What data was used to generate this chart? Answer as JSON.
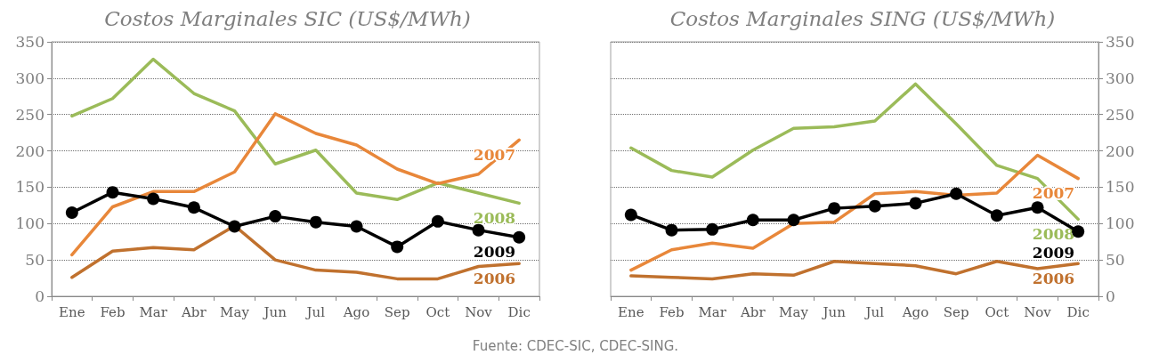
{
  "chart_data": [
    {
      "type": "line",
      "title": "Costos Marginales SIC (US$/MWh)",
      "categories": [
        "Ene",
        "Feb",
        "Mar",
        "Abr",
        "May",
        "Jun",
        "Jul",
        "Ago",
        "Sep",
        "Oct",
        "Nov",
        "Dic"
      ],
      "series": [
        {
          "name": "2008",
          "color": "#9bbb59",
          "marker": "none",
          "values": [
            248,
            272,
            326,
            279,
            255,
            182,
            201,
            142,
            133,
            156,
            142,
            128
          ]
        },
        {
          "name": "2007",
          "color": "#e8873a",
          "marker": "none",
          "values": [
            57,
            123,
            144,
            144,
            171,
            251,
            224,
            208,
            175,
            155,
            168,
            215
          ]
        },
        {
          "name": "2006",
          "color": "#c0712e",
          "marker": "none",
          "values": [
            26,
            62,
            67,
            64,
            97,
            50,
            36,
            33,
            24,
            24,
            41,
            45
          ]
        },
        {
          "name": "2009",
          "color": "#000000",
          "marker": "circle",
          "values": [
            115,
            143,
            134,
            122,
            96,
            110,
            102,
            96,
            68,
            103,
            91,
            81
          ]
        }
      ],
      "ylim": [
        0,
        350
      ],
      "yticks": [
        0,
        50,
        100,
        150,
        200,
        250,
        300,
        350
      ],
      "grid": "y",
      "legend": false,
      "annotations": [
        "Fuente: CDEC-SIC, CDEC-SING."
      ]
    },
    {
      "type": "line",
      "title": "Costos Marginales SING (US$/MWh)",
      "categories": [
        "Ene",
        "Feb",
        "Mar",
        "Abr",
        "May",
        "Jun",
        "Jul",
        "Ago",
        "Sep",
        "Oct",
        "Nov",
        "Dic"
      ],
      "series": [
        {
          "name": "2008",
          "color": "#9bbb59",
          "marker": "none",
          "axis": "y2",
          "values": [
            204,
            173,
            164,
            201,
            231,
            233,
            241,
            292,
            237,
            180,
            162,
            106
          ]
        },
        {
          "name": "2007",
          "color": "#e8873a",
          "marker": "none",
          "axis": "y2",
          "values": [
            36,
            64,
            73,
            66,
            100,
            102,
            141,
            144,
            139,
            142,
            194,
            162
          ]
        },
        {
          "name": "2006",
          "color": "#c0712e",
          "marker": "none",
          "axis": "y2",
          "values": [
            28,
            26,
            24,
            31,
            29,
            48,
            45,
            42,
            31,
            48,
            38,
            45
          ]
        },
        {
          "name": "2009",
          "color": "#000000",
          "marker": "circle",
          "axis": "y2",
          "values": [
            112,
            91,
            92,
            105,
            105,
            121,
            124,
            128,
            141,
            111,
            122,
            89
          ]
        }
      ],
      "y2lim": [
        0,
        350
      ],
      "y2ticks": [
        0,
        50,
        100,
        150,
        200,
        250,
        300,
        350
      ],
      "grid": "y",
      "legend": false
    }
  ]
}
